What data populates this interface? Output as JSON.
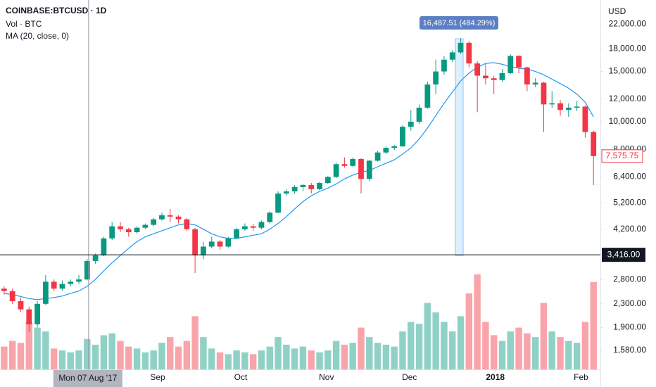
{
  "chart_data": {
    "type": "candlestick",
    "title": "COINBASE:BTCUSD · 1D",
    "currency": "USD",
    "log_scale": true,
    "grid": false,
    "up_color": "#089981",
    "down_color": "#f23645",
    "ylim": [
      1355,
      26700
    ],
    "yticks": [
      {
        "value": 1580,
        "label": "1,580.00"
      },
      {
        "value": 1900,
        "label": "1,900.00"
      },
      {
        "value": 2300,
        "label": "2,300.00"
      },
      {
        "value": 2800,
        "label": "2,800.00"
      },
      {
        "value": 4200,
        "label": "4,200.00"
      },
      {
        "value": 5200,
        "label": "5,200.00"
      },
      {
        "value": 6400,
        "label": "6,400.00"
      },
      {
        "value": 8000,
        "label": "8,000.00"
      },
      {
        "value": 10000,
        "label": "10,000.00"
      },
      {
        "value": 12000,
        "label": "12,000.00"
      },
      {
        "value": 15000,
        "label": "15,000.00"
      },
      {
        "value": 18000,
        "label": "18,000.00"
      },
      {
        "value": 22000,
        "label": "22,000.00"
      }
    ],
    "xlim": [
      -0.5,
      71.83
    ],
    "xticks": [
      {
        "value": 18.5,
        "label": "Sep"
      },
      {
        "value": 28.5,
        "label": "Oct"
      },
      {
        "value": 38.83,
        "label": "Nov"
      },
      {
        "value": 48.83,
        "label": "Dec"
      },
      {
        "value": 59.17,
        "label": "2018"
      },
      {
        "value": 69.5,
        "label": "Feb"
      }
    ],
    "open": [
      2600,
      2550,
      2350,
      2200,
      1950,
      2300,
      2750,
      2600,
      2700,
      2750,
      2800,
      3250,
      3400,
      3900,
      4300,
      4200,
      4100,
      4250,
      4350,
      4550,
      4700,
      4650,
      4550,
      4200,
      3400,
      3650,
      3800,
      3650,
      3900,
      4200,
      4300,
      4250,
      4450,
      4800,
      5600,
      5700,
      5900,
      6000,
      5800,
      6100,
      6400,
      7100,
      7000,
      7400,
      6300,
      7300,
      7800,
      8100,
      8200,
      9600,
      10000,
      11200,
      13500,
      15000,
      16500,
      17500,
      18900,
      16000,
      14500,
      14200,
      14000,
      14800,
      17000,
      15500,
      13500,
      13700,
      11500,
      11600,
      11000,
      11200,
      11300,
      9200
    ],
    "high": [
      2650,
      2600,
      2420,
      2250,
      2350,
      2900,
      2800,
      2780,
      2800,
      2900,
      3300,
      3450,
      3950,
      4450,
      4450,
      4250,
      4300,
      4400,
      4600,
      4800,
      4950,
      4700,
      4600,
      4250,
      3800,
      3950,
      3850,
      3950,
      4250,
      4400,
      4380,
      4500,
      4850,
      5700,
      5800,
      6000,
      6050,
      6100,
      6150,
      6450,
      7200,
      7500,
      7500,
      7450,
      7350,
      7900,
      8200,
      8300,
      9700,
      11000,
      11500,
      13800,
      16500,
      17000,
      17800,
      19600,
      19200,
      16300,
      16000,
      14500,
      15300,
      17200,
      17100,
      15600,
      14200,
      13800,
      12800,
      11900,
      11600,
      11800,
      11400,
      9300
    ],
    "low": [
      2480,
      2300,
      2150,
      1830,
      1900,
      2280,
      2550,
      2560,
      2650,
      2700,
      2780,
      3180,
      3380,
      3850,
      4100,
      3950,
      4050,
      4200,
      4300,
      4500,
      4450,
      4400,
      4150,
      2950,
      3300,
      3600,
      3550,
      3620,
      3880,
      4150,
      4150,
      4200,
      4400,
      4780,
      5500,
      5600,
      5700,
      5600,
      5750,
      6050,
      6350,
      6900,
      6950,
      5600,
      6200,
      7250,
      7700,
      7950,
      8150,
      9300,
      9800,
      11100,
      12500,
      14600,
      16200,
      17300,
      15500,
      10800,
      13500,
      12500,
      13800,
      14700,
      14800,
      12800,
      13200,
      9200,
      11200,
      10500,
      10400,
      10900,
      8800,
      6000
    ],
    "close": [
      2550,
      2350,
      2200,
      1950,
      2300,
      2750,
      2600,
      2700,
      2750,
      2800,
      3250,
      3400,
      3900,
      4300,
      4200,
      4100,
      4250,
      4350,
      4550,
      4700,
      4650,
      4550,
      4200,
      3400,
      3650,
      3800,
      3650,
      3900,
      4200,
      4300,
      4250,
      4450,
      4800,
      5600,
      5700,
      5900,
      6000,
      5800,
      6100,
      6400,
      7100,
      7000,
      7400,
      6300,
      7300,
      7800,
      8100,
      8200,
      9600,
      10000,
      11200,
      13500,
      15000,
      16500,
      17500,
      18900,
      16000,
      14500,
      14200,
      14000,
      14800,
      17000,
      15500,
      13500,
      13700,
      11500,
      11600,
      11000,
      11200,
      11300,
      9200,
      7575.75
    ],
    "volume": {
      "name": "Vol · BTC",
      "values": [
        12000,
        15000,
        14000,
        25000,
        22000,
        20000,
        11000,
        10000,
        9000,
        10000,
        16000,
        13000,
        18000,
        19000,
        15000,
        12000,
        11000,
        9000,
        10000,
        14000,
        17000,
        12000,
        15000,
        28000,
        17000,
        11000,
        9000,
        8000,
        10000,
        9000,
        8000,
        10000,
        12000,
        17000,
        13000,
        11000,
        12000,
        10000,
        9000,
        10000,
        15000,
        13000,
        14000,
        22000,
        17000,
        14000,
        13000,
        12000,
        20000,
        25000,
        24000,
        35000,
        30000,
        25000,
        20000,
        28000,
        40000,
        50000,
        25000,
        18000,
        15000,
        20000,
        22000,
        19000,
        17000,
        35000,
        20000,
        17000,
        15000,
        14000,
        25000,
        46000
      ]
    },
    "ma": {
      "name": "MA (20, close, 0)",
      "color": "#2196f3",
      "values": [
        2500,
        2480,
        2440,
        2400,
        2380,
        2400,
        2420,
        2450,
        2500,
        2550,
        2650,
        2800,
        3000,
        3200,
        3400,
        3600,
        3800,
        3950,
        4050,
        4150,
        4250,
        4350,
        4400,
        4350,
        4200,
        4050,
        3950,
        3900,
        3900,
        3950,
        4000,
        4050,
        4200,
        4400,
        4650,
        4950,
        5250,
        5500,
        5700,
        5850,
        6050,
        6300,
        6500,
        6650,
        6750,
        6950,
        7150,
        7350,
        7700,
        8100,
        8700,
        9500,
        10500,
        11600,
        12700,
        13900,
        14800,
        15500,
        16000,
        16100,
        15900,
        15600,
        15400,
        15300,
        15000,
        14600,
        14100,
        13600,
        13100,
        12500,
        11700,
        10400
      ]
    },
    "last_price": {
      "value": 7575.75,
      "label": "7,575.75"
    },
    "crosshair": {
      "x": {
        "value": 10.17,
        "label": "Mon 07 Aug '17"
      },
      "y": {
        "value": 3416,
        "label": "3,416.00"
      }
    },
    "measure_label": "16,487.51 (484.29%)"
  }
}
